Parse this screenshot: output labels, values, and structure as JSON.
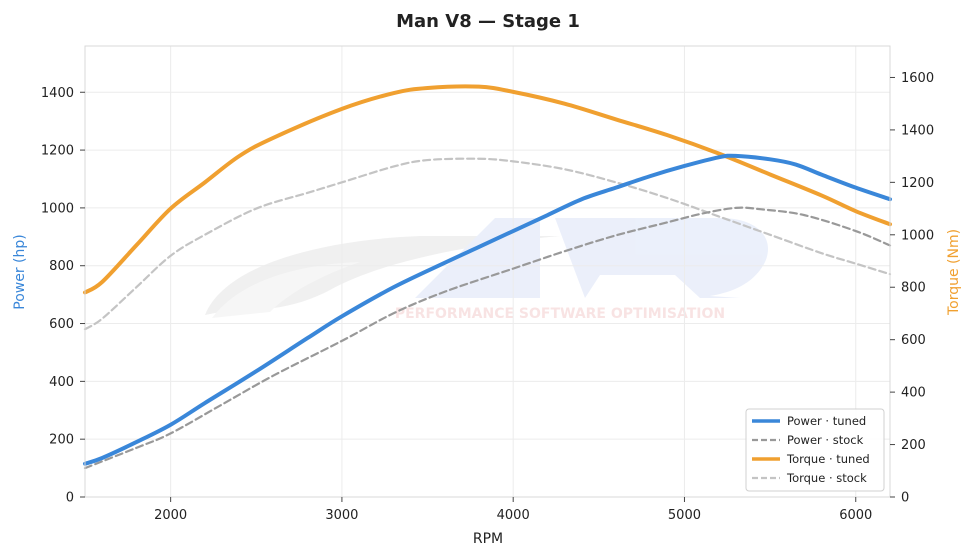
{
  "chart_data": {
    "type": "line",
    "title": "Man V8 — Stage 1",
    "xlabel": "RPM",
    "ylabel_left": "Power (hp)",
    "ylabel_right": "Torque (Nm)",
    "xlim": [
      1500,
      6200
    ],
    "ylim_left": [
      0,
      1560
    ],
    "ylim_right": [
      0,
      1720
    ],
    "x_ticks": [
      2000,
      3000,
      4000,
      5000,
      6000
    ],
    "y_ticks_left": [
      0,
      200,
      400,
      600,
      800,
      1000,
      1200,
      1400
    ],
    "y_ticks_right": [
      0,
      200,
      400,
      600,
      800,
      1000,
      1200,
      1400,
      1600
    ],
    "grid": true,
    "legend_position": "bottom-right",
    "watermark": "PERFORMANCE SOFTWARE OPTIMISATION",
    "series": [
      {
        "name": "Power · tuned",
        "axis": "left",
        "color": "#3a87d9",
        "style": "solid",
        "x": [
          1500,
          1600,
          1800,
          2000,
          2200,
          2500,
          2800,
          3000,
          3300,
          3600,
          3800,
          4000,
          4200,
          4400,
          4600,
          4800,
          5000,
          5200,
          5300,
          5500,
          5650,
          5800,
          6000,
          6200
        ],
        "y": [
          115,
          135,
          190,
          250,
          325,
          435,
          550,
          625,
          725,
          810,
          865,
          920,
          975,
          1030,
          1070,
          1110,
          1145,
          1175,
          1180,
          1168,
          1150,
          1115,
          1070,
          1030
        ]
      },
      {
        "name": "Power · stock",
        "axis": "left",
        "color": "#999999",
        "style": "dashed",
        "x": [
          1500,
          1800,
          2000,
          2300,
          2600,
          3000,
          3300,
          3600,
          4000,
          4300,
          4600,
          4900,
          5100,
          5300,
          5450,
          5700,
          6000,
          6200
        ],
        "y": [
          100,
          170,
          220,
          320,
          420,
          540,
          635,
          710,
          790,
          850,
          905,
          950,
          980,
          1000,
          995,
          975,
          920,
          870
        ]
      },
      {
        "name": "Torque · tuned",
        "axis": "right",
        "color": "#f0a030",
        "style": "solid",
        "x": [
          1500,
          1600,
          1800,
          2000,
          2200,
          2400,
          2600,
          3000,
          3300,
          3500,
          3800,
          4000,
          4300,
          4600,
          4900,
          5200,
          5500,
          5800,
          6000,
          6200
        ],
        "y": [
          780,
          820,
          960,
          1100,
          1200,
          1300,
          1370,
          1480,
          1540,
          1560,
          1565,
          1545,
          1500,
          1440,
          1380,
          1310,
          1230,
          1150,
          1090,
          1040
        ]
      },
      {
        "name": "Torque · stock",
        "axis": "right",
        "color": "#c4c4c4",
        "style": "dashed",
        "x": [
          1500,
          1600,
          1800,
          2000,
          2200,
          2500,
          2800,
          3000,
          3300,
          3500,
          3800,
          4000,
          4300,
          4600,
          4900,
          5200,
          5500,
          5800,
          6000,
          6200
        ],
        "y": [
          640,
          680,
          800,
          920,
          1000,
          1100,
          1160,
          1200,
          1260,
          1285,
          1290,
          1280,
          1250,
          1200,
          1140,
          1070,
          1000,
          930,
          890,
          850
        ]
      }
    ]
  }
}
